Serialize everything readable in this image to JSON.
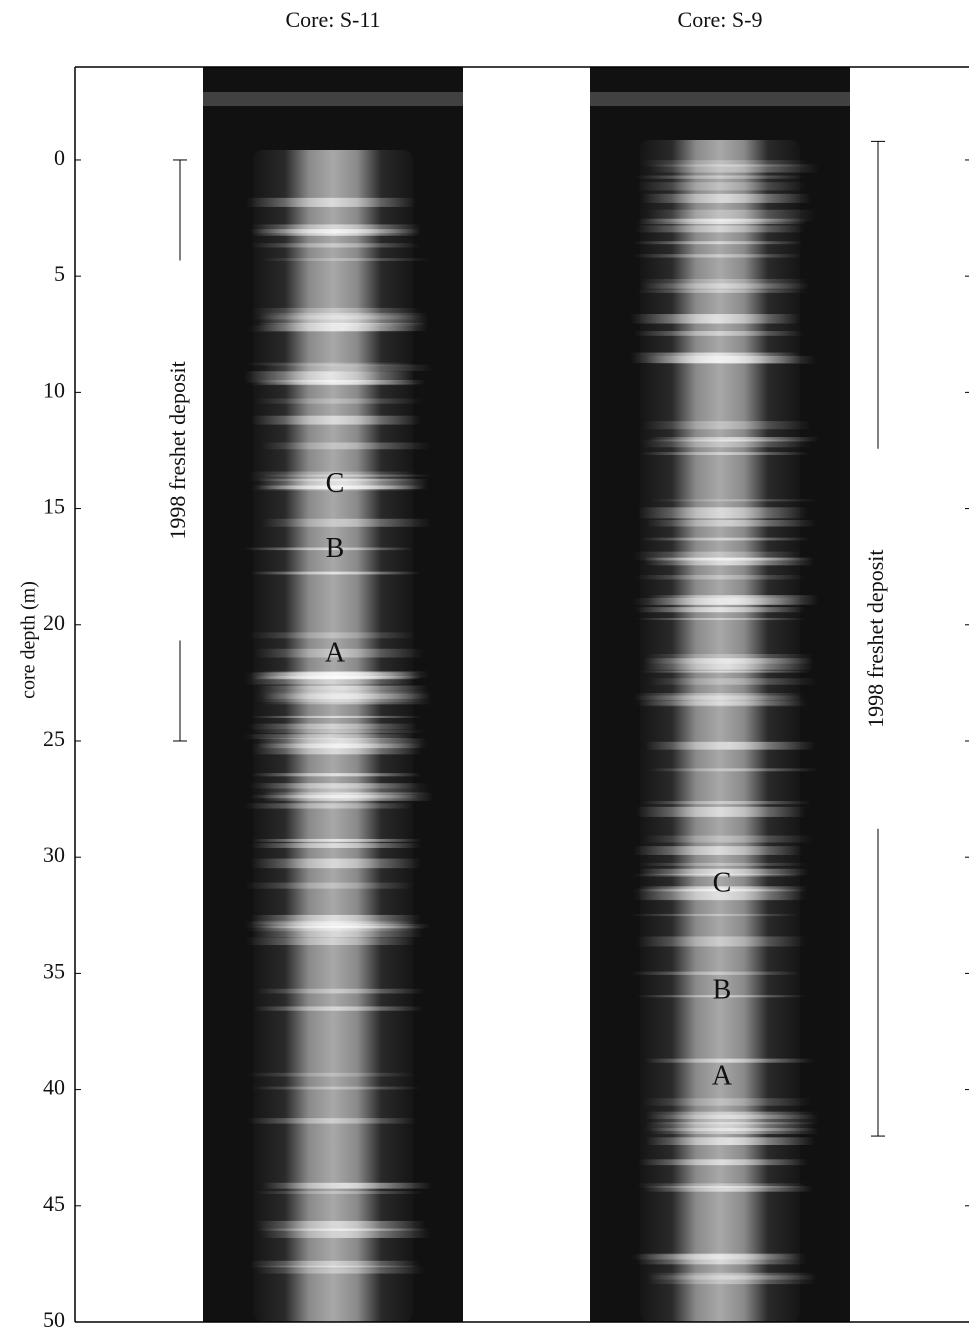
{
  "chart_data": {
    "type": "core-image",
    "ylabel": "core depth (m)",
    "ylim": [
      -4,
      50
    ],
    "yticks": [
      0,
      5,
      10,
      15,
      20,
      25,
      30,
      35,
      40,
      45,
      50
    ],
    "panels": [
      {
        "title": "Core: S-11",
        "deposit_label": "1998 freshet deposit",
        "deposit_range": [
          0,
          25
        ],
        "markers": [
          "C",
          "B",
          "A"
        ],
        "marker_depths": [
          14,
          16.8,
          21.3
        ]
      },
      {
        "title": "Core: S-9",
        "deposit_label": "1998 freshet deposit",
        "deposit_range": [
          -0.8,
          42
        ],
        "markers": [
          "C",
          "B",
          "A"
        ],
        "marker_depths": [
          31.2,
          35.8,
          39.5
        ]
      }
    ]
  }
}
